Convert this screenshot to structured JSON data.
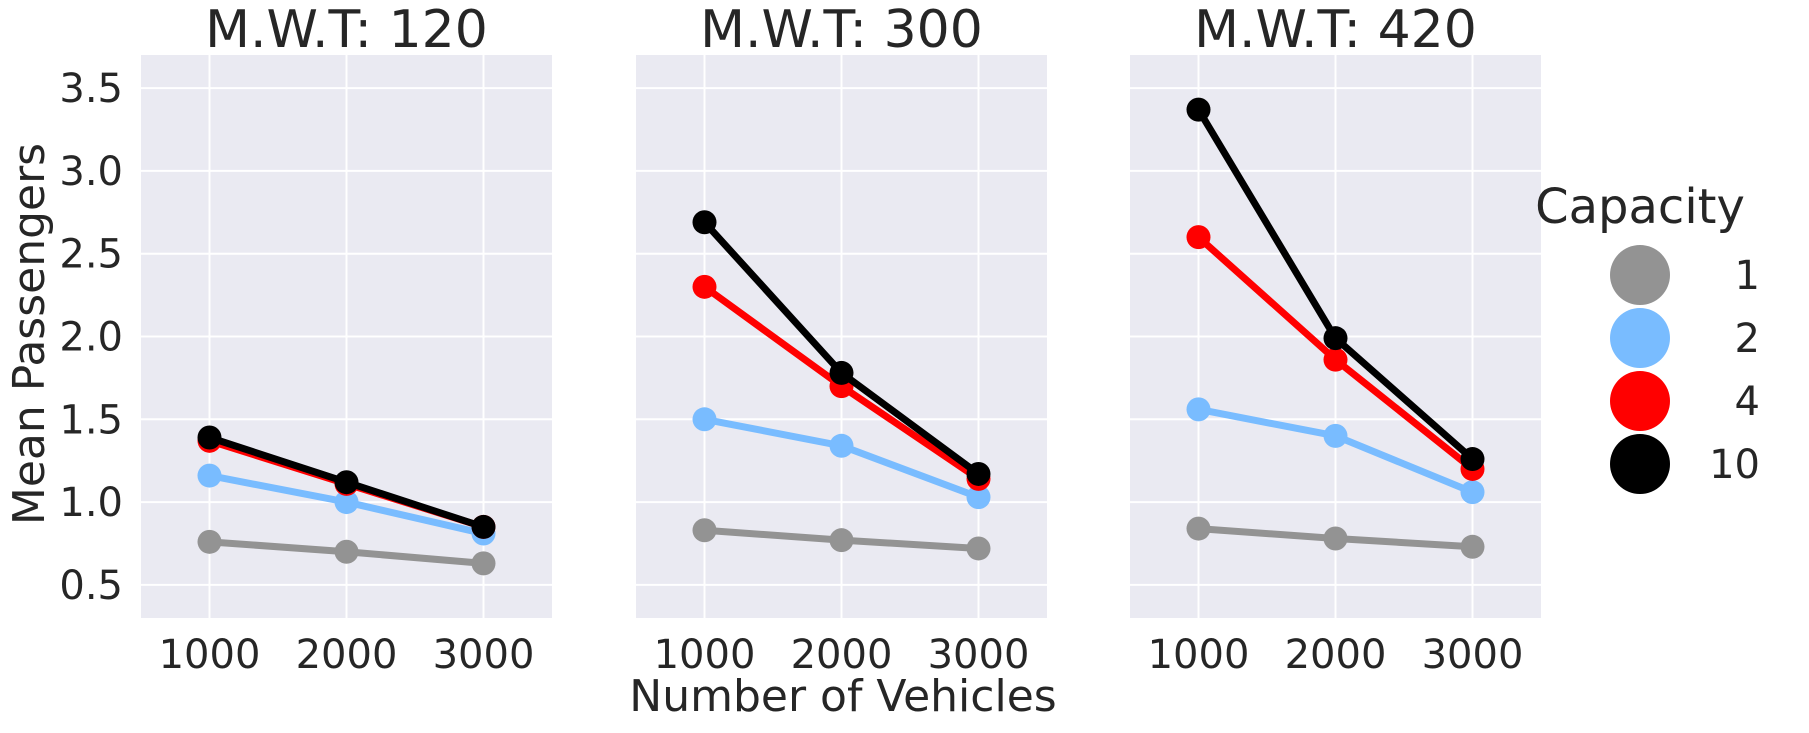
{
  "chart_data": {
    "type": "line",
    "facet_titles": [
      "M.W.T: 120",
      "M.W.T: 300",
      "M.W.T: 420"
    ],
    "xlabel": "Number of Vehicles",
    "ylabel": "Mean Passengers",
    "x": [
      1000,
      2000,
      3000
    ],
    "x_tick_labels": [
      "1000",
      "2000",
      "3000"
    ],
    "y_ticks": [
      0.5,
      1.0,
      1.5,
      2.0,
      2.5,
      3.0,
      3.5
    ],
    "y_tick_labels": [
      "0.5",
      "1.0",
      "1.5",
      "2.0",
      "2.5",
      "3.0",
      "3.5"
    ],
    "ylim": [
      0.3,
      3.7
    ],
    "grid": true,
    "sharey": true,
    "legend": {
      "title": "Capacity",
      "placement": "right",
      "entries": [
        "1",
        "2",
        "4",
        "10"
      ]
    },
    "panels": [
      {
        "title": "M.W.T: 120",
        "series": [
          {
            "name": "1",
            "color": "#939393",
            "values": [
              0.76,
              0.7,
              0.63
            ]
          },
          {
            "name": "2",
            "color": "#79bcff",
            "values": [
              1.16,
              1.0,
              0.81
            ]
          },
          {
            "name": "4",
            "color": "#ff0000",
            "values": [
              1.37,
              1.11,
              0.85
            ]
          },
          {
            "name": "10",
            "color": "#000000",
            "values": [
              1.39,
              1.12,
              0.85
            ]
          }
        ]
      },
      {
        "title": "M.W.T: 300",
        "series": [
          {
            "name": "1",
            "color": "#939393",
            "values": [
              0.83,
              0.77,
              0.72
            ]
          },
          {
            "name": "2",
            "color": "#79bcff",
            "values": [
              1.5,
              1.34,
              1.03
            ]
          },
          {
            "name": "4",
            "color": "#ff0000",
            "values": [
              2.3,
              1.7,
              1.14
            ]
          },
          {
            "name": "10",
            "color": "#000000",
            "values": [
              2.69,
              1.78,
              1.17
            ]
          }
        ]
      },
      {
        "title": "M.W.T: 420",
        "series": [
          {
            "name": "1",
            "color": "#939393",
            "values": [
              0.84,
              0.78,
              0.73
            ]
          },
          {
            "name": "2",
            "color": "#79bcff",
            "values": [
              1.56,
              1.4,
              1.06
            ]
          },
          {
            "name": "4",
            "color": "#ff0000",
            "values": [
              2.6,
              1.86,
              1.2
            ]
          },
          {
            "name": "10",
            "color": "#000000",
            "values": [
              3.37,
              1.99,
              1.26
            ]
          }
        ]
      }
    ]
  }
}
